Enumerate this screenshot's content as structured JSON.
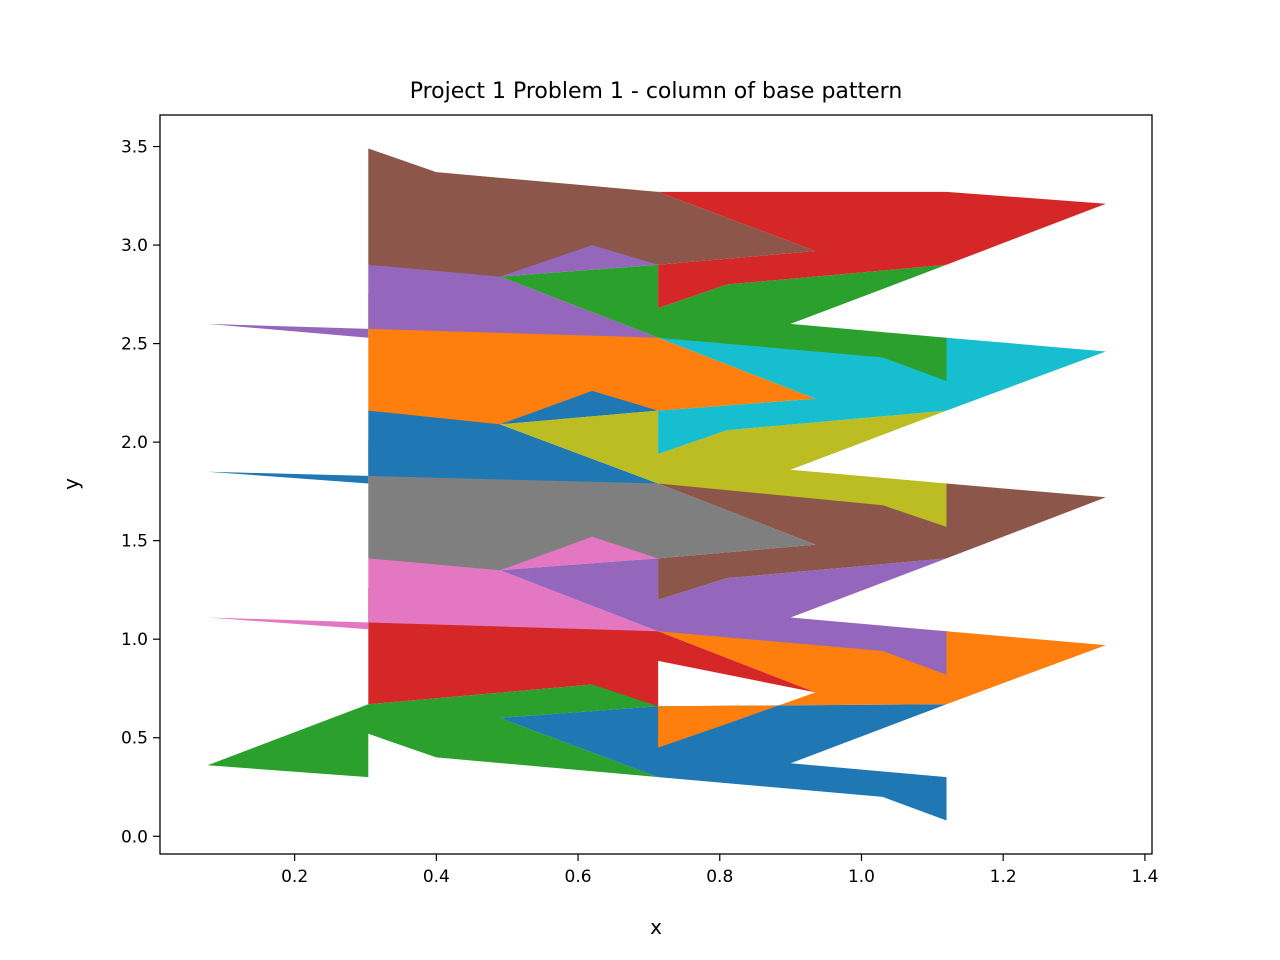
{
  "chart_data": {
    "type": "area",
    "title": "Project 1 Problem 1 - column of base pattern",
    "xlabel": "x",
    "ylabel": "y",
    "xlim": [
      0.01,
      1.41
    ],
    "ylim": [
      -0.09,
      3.66
    ],
    "xticks": [
      "0.2",
      "0.4",
      "0.6",
      "0.8",
      "1.0",
      "1.2",
      "1.4"
    ],
    "yticks": [
      "0.0",
      "0.5",
      "1.0",
      "1.5",
      "2.0",
      "2.5",
      "3.0",
      "3.5"
    ],
    "grid": false,
    "polygons": [
      {
        "color": "#2ca02c",
        "points": [
          [
            0.077,
            0.36
          ],
          [
            0.304,
            0.3
          ],
          [
            0.304,
            0.52
          ],
          [
            0.4,
            0.4
          ],
          [
            0.713,
            0.3
          ],
          [
            0.49,
            0.6
          ],
          [
            0.713,
            0.66
          ],
          [
            0.713,
            0.89
          ],
          [
            0.62,
            0.77
          ],
          [
            0.304,
            0.67
          ]
        ]
      },
      {
        "color": "#1f77b4",
        "points": [
          [
            0.49,
            0.6
          ],
          [
            0.713,
            0.66
          ],
          [
            1.12,
            0.67
          ],
          [
            0.9,
            0.37
          ],
          [
            1.12,
            0.3
          ],
          [
            1.12,
            0.08
          ],
          [
            1.03,
            0.2
          ],
          [
            0.713,
            0.3
          ]
        ]
      },
      {
        "color": "#ff7f0e",
        "points": [
          [
            0.713,
            0.66
          ],
          [
            0.713,
            0.45
          ],
          [
            0.81,
            0.57
          ],
          [
            0.935,
            0.73
          ],
          [
            0.713,
            1.04
          ],
          [
            1.12,
            1.04
          ],
          [
            1.345,
            0.97
          ],
          [
            1.12,
            0.67
          ]
        ]
      },
      {
        "color": "#d62728",
        "points": [
          [
            0.304,
            0.67
          ],
          [
            0.304,
            1.26
          ],
          [
            0.4,
            1.14
          ],
          [
            0.713,
            1.04
          ],
          [
            0.935,
            0.73
          ],
          [
            0.713,
            0.89
          ],
          [
            0.713,
            0.66
          ],
          [
            0.62,
            0.77
          ]
        ]
      },
      {
        "color": "#e377c2",
        "points": [
          [
            0.077,
            1.11
          ],
          [
            0.304,
            1.05
          ],
          [
            0.304,
            1.41
          ],
          [
            0.62,
            1.52
          ],
          [
            0.713,
            1.63
          ],
          [
            0.713,
            1.41
          ],
          [
            0.49,
            1.35
          ],
          [
            0.713,
            1.04
          ]
        ]
      },
      {
        "color": "#9467bd",
        "points": [
          [
            0.49,
            1.35
          ],
          [
            0.713,
            1.41
          ],
          [
            0.713,
            1.2
          ],
          [
            0.81,
            1.31
          ],
          [
            1.12,
            1.41
          ],
          [
            0.9,
            1.11
          ],
          [
            1.12,
            1.04
          ],
          [
            1.12,
            0.82
          ],
          [
            1.03,
            0.94
          ],
          [
            0.713,
            1.04
          ]
        ]
      },
      {
        "color": "#8c564b",
        "points": [
          [
            0.713,
            1.41
          ],
          [
            0.935,
            1.48
          ],
          [
            0.713,
            1.79
          ],
          [
            1.12,
            1.79
          ],
          [
            1.345,
            1.72
          ],
          [
            1.12,
            1.41
          ],
          [
            0.81,
            1.31
          ],
          [
            0.713,
            1.2
          ]
        ]
      },
      {
        "color": "#7f7f7f",
        "points": [
          [
            0.304,
            1.41
          ],
          [
            0.304,
            2.01
          ],
          [
            0.4,
            1.89
          ],
          [
            0.713,
            1.79
          ],
          [
            0.935,
            1.48
          ],
          [
            0.713,
            1.41
          ],
          [
            0.62,
            1.52
          ],
          [
            0.49,
            1.35
          ]
        ]
      },
      {
        "color": "#1f77b4",
        "points": [
          [
            0.077,
            1.85
          ],
          [
            0.304,
            1.79
          ],
          [
            0.304,
            2.16
          ],
          [
            0.62,
            2.26
          ],
          [
            0.713,
            2.38
          ],
          [
            0.713,
            2.16
          ],
          [
            0.49,
            2.09
          ],
          [
            0.713,
            1.79
          ]
        ]
      },
      {
        "color": "#bcbd22",
        "points": [
          [
            0.49,
            2.09
          ],
          [
            0.713,
            2.16
          ],
          [
            0.713,
            1.94
          ],
          [
            0.81,
            2.06
          ],
          [
            1.12,
            2.16
          ],
          [
            0.9,
            1.86
          ],
          [
            1.12,
            1.79
          ],
          [
            1.12,
            1.57
          ],
          [
            1.03,
            1.68
          ],
          [
            0.713,
            1.79
          ]
        ]
      },
      {
        "color": "#17becf",
        "points": [
          [
            0.713,
            2.16
          ],
          [
            0.935,
            2.22
          ],
          [
            0.713,
            2.53
          ],
          [
            1.12,
            2.53
          ],
          [
            1.345,
            2.46
          ],
          [
            1.12,
            2.16
          ],
          [
            0.81,
            2.06
          ],
          [
            0.713,
            1.94
          ]
        ]
      },
      {
        "color": "#ff7f0e",
        "points": [
          [
            0.304,
            2.16
          ],
          [
            0.304,
            2.75
          ],
          [
            0.4,
            2.63
          ],
          [
            0.713,
            2.53
          ],
          [
            0.935,
            2.22
          ],
          [
            0.713,
            2.16
          ],
          [
            0.62,
            2.26
          ],
          [
            0.49,
            2.09
          ]
        ]
      },
      {
        "color": "#9467bd",
        "points": [
          [
            0.077,
            2.6
          ],
          [
            0.304,
            2.53
          ],
          [
            0.304,
            2.9
          ],
          [
            0.62,
            3.0
          ],
          [
            0.713,
            3.12
          ],
          [
            0.713,
            2.9
          ],
          [
            0.49,
            2.84
          ],
          [
            0.713,
            2.53
          ]
        ]
      },
      {
        "color": "#2ca02c",
        "points": [
          [
            0.49,
            2.84
          ],
          [
            0.713,
            2.9
          ],
          [
            0.713,
            2.68
          ],
          [
            0.81,
            2.8
          ],
          [
            1.12,
            2.9
          ],
          [
            0.9,
            2.6
          ],
          [
            1.12,
            2.53
          ],
          [
            1.12,
            2.31
          ],
          [
            1.03,
            2.43
          ],
          [
            0.713,
            2.53
          ]
        ]
      },
      {
        "color": "#d62728",
        "points": [
          [
            0.713,
            2.9
          ],
          [
            0.935,
            2.97
          ],
          [
            0.713,
            3.27
          ],
          [
            1.12,
            3.27
          ],
          [
            1.345,
            3.21
          ],
          [
            1.12,
            2.9
          ],
          [
            0.81,
            2.8
          ],
          [
            0.713,
            2.68
          ]
        ]
      },
      {
        "color": "#8c564b",
        "points": [
          [
            0.304,
            2.9
          ],
          [
            0.304,
            3.49
          ],
          [
            0.4,
            3.37
          ],
          [
            0.713,
            3.27
          ],
          [
            0.935,
            2.97
          ],
          [
            0.713,
            2.9
          ],
          [
            0.62,
            3.0
          ],
          [
            0.49,
            2.84
          ]
        ]
      }
    ]
  }
}
